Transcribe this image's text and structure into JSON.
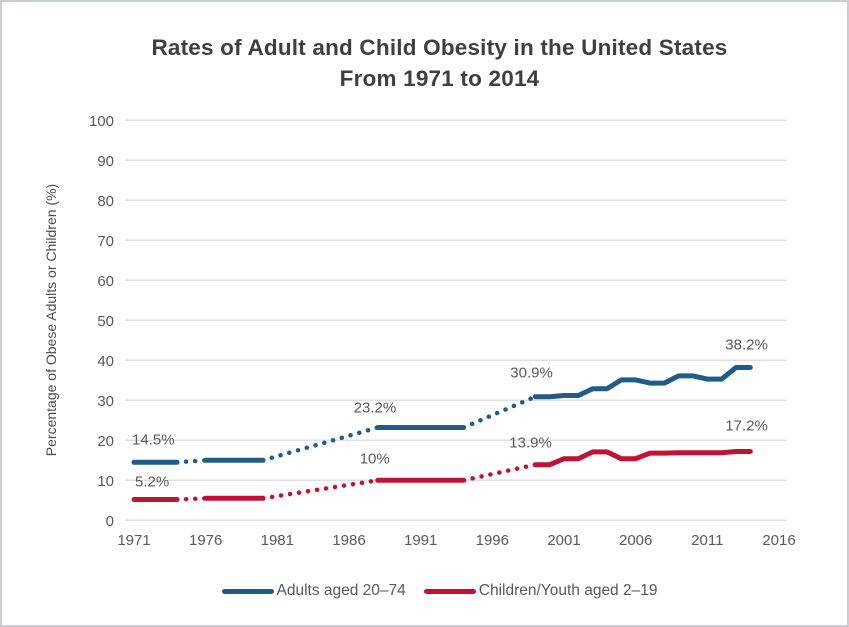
{
  "page": {
    "title_line1": "Rates of Adult and Child Obesity in the United States",
    "title_line2": "From 1971 to 2014"
  },
  "chart_data": {
    "type": "line",
    "title": "Rates of Adult and Child Obesity in the United States From 1971 to 2014",
    "xlabel": "",
    "ylabel": "Percentage of Obese Adults or Children (%)",
    "xlim": [
      1971,
      2016
    ],
    "ylim": [
      0,
      100
    ],
    "x_ticks": [
      1971,
      1976,
      1981,
      1986,
      1991,
      1996,
      2001,
      2006,
      2011,
      2016
    ],
    "y_ticks": [
      0,
      10,
      20,
      30,
      40,
      50,
      60,
      70,
      80,
      90,
      100
    ],
    "grid": "horizontal-only",
    "legend_position": "bottom",
    "gap_style": "dotted connector between non-contiguous survey periods",
    "colors": {
      "adults": "#1F5C8C",
      "children": "#C11236",
      "grid": "#E0E0E0",
      "text": "#595959",
      "title": "#3F3F3F"
    },
    "series": [
      {
        "id": "adults",
        "name": "Adults aged 20–74",
        "color": "#1F5C8C",
        "periods": [
          {
            "start": 1971,
            "end": 1974,
            "value": 14.5
          },
          {
            "start": 1976,
            "end": 1980,
            "value": 15.0
          },
          {
            "start": 1988,
            "end": 1994,
            "value": 23.2
          },
          {
            "start": 1999,
            "end": 2000,
            "value": 30.9
          },
          {
            "start": 2001,
            "end": 2002,
            "value": 31.2
          },
          {
            "start": 2003,
            "end": 2004,
            "value": 32.9
          },
          {
            "start": 2005,
            "end": 2006,
            "value": 35.1
          },
          {
            "start": 2007,
            "end": 2008,
            "value": 34.3
          },
          {
            "start": 2009,
            "end": 2010,
            "value": 36.1
          },
          {
            "start": 2011,
            "end": 2012,
            "value": 35.3
          },
          {
            "start": 2013,
            "end": 2014,
            "value": 38.2
          }
        ],
        "annotations": [
          {
            "text": "14.5%",
            "year": 1971,
            "value": 14.5,
            "dx": -2,
            "dy": -18
          },
          {
            "text": "23.2%",
            "year": 1988,
            "value": 23.2,
            "dx": -24,
            "dy": -15
          },
          {
            "text": "30.9%",
            "year": 1999,
            "value": 30.9,
            "dx": -25,
            "dy": -19
          },
          {
            "text": "38.2%",
            "year": 2014,
            "value": 38.2,
            "dx": -25,
            "dy": -18
          }
        ]
      },
      {
        "id": "children",
        "name": "Children/Youth aged 2–19",
        "color": "#C11236",
        "periods": [
          {
            "start": 1971,
            "end": 1974,
            "value": 5.2
          },
          {
            "start": 1976,
            "end": 1980,
            "value": 5.5
          },
          {
            "start": 1988,
            "end": 1994,
            "value": 10.0
          },
          {
            "start": 1999,
            "end": 2000,
            "value": 13.9
          },
          {
            "start": 2001,
            "end": 2002,
            "value": 15.4
          },
          {
            "start": 2003,
            "end": 2004,
            "value": 17.1
          },
          {
            "start": 2005,
            "end": 2006,
            "value": 15.4
          },
          {
            "start": 2007,
            "end": 2008,
            "value": 16.8
          },
          {
            "start": 2009,
            "end": 2010,
            "value": 16.9
          },
          {
            "start": 2011,
            "end": 2012,
            "value": 16.9
          },
          {
            "start": 2013,
            "end": 2014,
            "value": 17.2
          }
        ],
        "annotations": [
          {
            "text": "5.2%",
            "year": 1971,
            "value": 5.2,
            "dx": 1,
            "dy": -13
          },
          {
            "text": "10%",
            "year": 1988,
            "value": 10.0,
            "dx": -18,
            "dy": -17
          },
          {
            "text": "13.9%",
            "year": 1999,
            "value": 13.9,
            "dx": -26,
            "dy": -17
          },
          {
            "text": "17.2%",
            "year": 2014,
            "value": 17.2,
            "dx": -25,
            "dy": -21
          }
        ]
      }
    ]
  }
}
